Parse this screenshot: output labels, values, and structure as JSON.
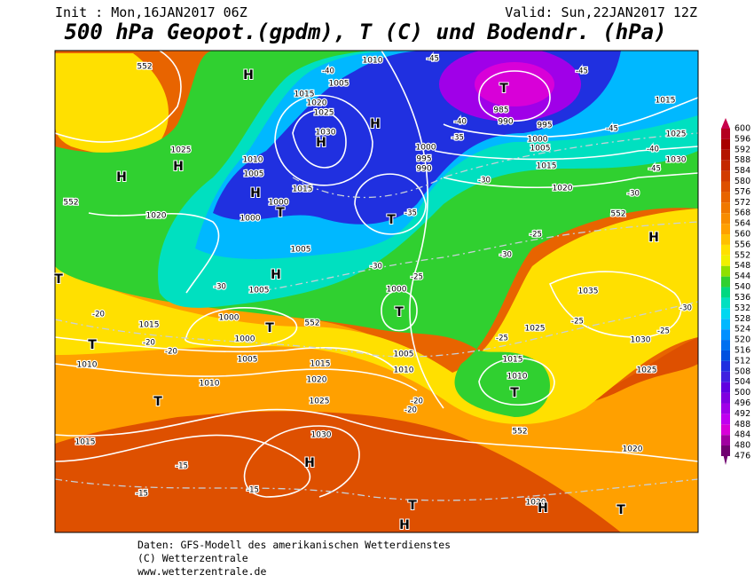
{
  "header": {
    "init": "Init : Mon,16JAN2017 06Z",
    "valid": "Valid: Sun,22JAN2017 12Z",
    "title": "500 hPa Geopot.(gpdm), T (C) und Bodendr. (hPa)"
  },
  "footer": {
    "line1": "Daten: GFS-Modell des amerikanischen Wetterdienstes",
    "line2": "(C) Wetterzentrale",
    "line3": "www.wetterzentrale.de"
  },
  "scale": {
    "values": [
      600,
      596,
      592,
      588,
      584,
      580,
      576,
      572,
      568,
      564,
      560,
      556,
      552,
      548,
      544,
      540,
      536,
      532,
      528,
      524,
      520,
      516,
      512,
      508,
      504,
      500,
      496,
      492,
      488,
      484,
      480,
      476
    ],
    "colors": [
      "#c8004a",
      "#b40020",
      "#a80000",
      "#b41400",
      "#c42800",
      "#d23c00",
      "#de5000",
      "#e86400",
      "#f07800",
      "#f88c00",
      "#ffa000",
      "#ffc000",
      "#ffe000",
      "#f0f000",
      "#90e000",
      "#30d030",
      "#00d880",
      "#00e0c0",
      "#00d8f0",
      "#00b8ff",
      "#0090ff",
      "#0070f0",
      "#0050e0",
      "#2030e0",
      "#4020e0",
      "#6000e0",
      "#8000e0",
      "#a000e8",
      "#c000f0",
      "#d800d8",
      "#a000a0",
      "#700070"
    ]
  },
  "map_labels": [
    "552",
    "H",
    "1010",
    "1005",
    "1015",
    "1020",
    "1025",
    "H",
    "1030",
    "H",
    "T",
    "985",
    "990",
    "995",
    "1000",
    "1005",
    "1015",
    "1025",
    "1030",
    "1020",
    "1015",
    "1000",
    "995",
    "990",
    "T",
    "H",
    "T",
    "1000",
    "1005",
    "1010",
    "1015",
    "1000",
    "1025",
    "H",
    "H",
    "1020",
    "1005",
    "H",
    "1005",
    "1000",
    "T",
    "1000",
    "1005",
    "1015",
    "T",
    "1010",
    "1010",
    "T",
    "1015",
    "1020",
    "1025",
    "1030",
    "H",
    "1015",
    "1000",
    "T",
    "1005",
    "1010",
    "1015",
    "T",
    "1010",
    "H",
    "1035",
    "1025",
    "1030",
    "1025",
    "1020",
    "T",
    "1020",
    "H",
    "T",
    "H",
    "T",
    "552",
    "552",
    "552",
    "552"
  ],
  "temp_labels": [
    "-40",
    "-45",
    "-45",
    "-40",
    "-35",
    "-45",
    "-40",
    "-45",
    "-30",
    "-30",
    "-35",
    "-25",
    "-30",
    "-30",
    "-25",
    "-30",
    "-20",
    "-20",
    "-20",
    "-25",
    "-20",
    "-20",
    "-15",
    "-15",
    "-15",
    "-25",
    "-30",
    "-25"
  ]
}
